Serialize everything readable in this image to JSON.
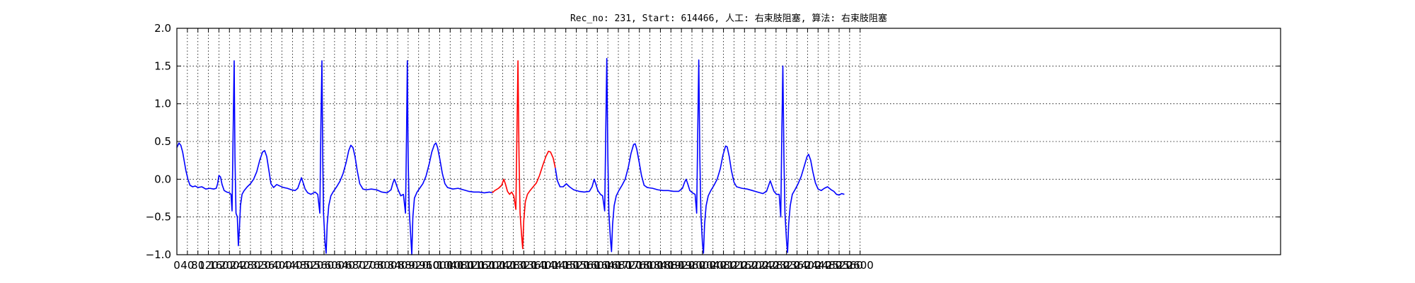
{
  "chart_data": {
    "type": "line",
    "title": "Rec_no: 231, Start: 614466, 人工: 右束肢阻塞, 算法: 右束肢阻塞",
    "xlabel": "",
    "ylabel": "",
    "xlim": [
      0,
      4200
    ],
    "ylim": [
      -1.0,
      2.0
    ],
    "y_ticks": [
      -1.0,
      -0.5,
      0.0,
      0.5,
      1.0,
      1.5,
      2.0
    ],
    "y_tick_labels": [
      "−1.0",
      "−0.5",
      "0.0",
      "0.5",
      "1.0",
      "1.5",
      "2.0"
    ],
    "x_ticks": [
      0,
      40,
      80,
      120,
      160,
      200,
      240,
      280,
      320,
      360,
      400,
      440,
      480,
      520,
      560,
      600,
      640,
      680,
      720,
      760,
      800,
      840,
      880,
      920,
      960,
      1000,
      1040,
      1080,
      1120,
      1160,
      1200,
      1240,
      1280,
      1320,
      1360,
      1400,
      1440,
      1480,
      1520,
      1560,
      1600,
      1640,
      1680,
      1720,
      1760,
      1800,
      1840,
      1880,
      1920,
      1960,
      2000,
      2040,
      2080,
      2120,
      2160,
      2200,
      2240,
      2280,
      2320,
      2360,
      2400,
      2440,
      2480,
      2520,
      2560,
      2600
    ],
    "grid": true,
    "grid_style": "dotted",
    "colors": {
      "signal": "#0000ff",
      "highlight": "#ff0000",
      "axes": "#000000",
      "grid": "#000000"
    },
    "x_end": 2600,
    "highlight_range": [
      1200,
      1440
    ],
    "series": [
      {
        "points": [
          [
            0,
            0.42
          ],
          [
            8,
            0.48
          ],
          [
            15,
            0.45
          ],
          [
            22,
            0.36
          ],
          [
            28,
            0.24
          ],
          [
            34,
            0.12
          ],
          [
            42,
            0.0
          ],
          [
            50,
            -0.08
          ],
          [
            60,
            -0.1
          ],
          [
            70,
            -0.09
          ],
          [
            80,
            -0.11
          ],
          [
            95,
            -0.1
          ],
          [
            110,
            -0.13
          ],
          [
            125,
            -0.12
          ],
          [
            140,
            -0.13
          ],
          [
            150,
            -0.12
          ],
          [
            155,
            -0.06
          ],
          [
            160,
            0.05
          ],
          [
            166,
            0.03
          ],
          [
            172,
            -0.07
          ],
          [
            180,
            -0.15
          ],
          [
            190,
            -0.17
          ],
          [
            200,
            -0.18
          ],
          [
            206,
            -0.2
          ],
          [
            210,
            -0.42
          ],
          [
            214,
            0.6
          ],
          [
            218,
            1.57
          ],
          [
            221,
            0.3
          ],
          [
            225,
            -0.45
          ],
          [
            230,
            -0.5
          ],
          [
            234,
            -0.88
          ],
          [
            238,
            -0.65
          ],
          [
            242,
            -0.35
          ],
          [
            248,
            -0.2
          ],
          [
            256,
            -0.15
          ],
          [
            268,
            -0.1
          ],
          [
            280,
            -0.06
          ],
          [
            292,
            0.0
          ],
          [
            304,
            0.1
          ],
          [
            316,
            0.26
          ],
          [
            326,
            0.36
          ],
          [
            334,
            0.38
          ],
          [
            342,
            0.3
          ],
          [
            350,
            0.12
          ],
          [
            358,
            -0.06
          ],
          [
            368,
            -0.11
          ],
          [
            380,
            -0.07
          ],
          [
            392,
            -0.09
          ],
          [
            406,
            -0.11
          ],
          [
            420,
            -0.12
          ],
          [
            436,
            -0.14
          ],
          [
            450,
            -0.15
          ],
          [
            460,
            -0.12
          ],
          [
            468,
            -0.04
          ],
          [
            474,
            0.02
          ],
          [
            480,
            -0.04
          ],
          [
            488,
            -0.13
          ],
          [
            498,
            -0.18
          ],
          [
            510,
            -0.2
          ],
          [
            526,
            -0.17
          ],
          [
            536,
            -0.2
          ],
          [
            544,
            -0.45
          ],
          [
            548,
            0.7
          ],
          [
            552,
            1.57
          ],
          [
            555,
            0.3
          ],
          [
            558,
            -0.45
          ],
          [
            564,
            -0.85
          ],
          [
            568,
            -0.98
          ],
          [
            572,
            -0.6
          ],
          [
            578,
            -0.35
          ],
          [
            586,
            -0.22
          ],
          [
            596,
            -0.16
          ],
          [
            608,
            -0.1
          ],
          [
            620,
            -0.03
          ],
          [
            632,
            0.07
          ],
          [
            644,
            0.22
          ],
          [
            654,
            0.38
          ],
          [
            662,
            0.45
          ],
          [
            670,
            0.42
          ],
          [
            678,
            0.3
          ],
          [
            686,
            0.12
          ],
          [
            696,
            -0.06
          ],
          [
            708,
            -0.13
          ],
          [
            720,
            -0.14
          ],
          [
            740,
            -0.13
          ],
          [
            760,
            -0.14
          ],
          [
            780,
            -0.17
          ],
          [
            800,
            -0.18
          ],
          [
            815,
            -0.14
          ],
          [
            822,
            -0.05
          ],
          [
            828,
            0.0
          ],
          [
            834,
            -0.06
          ],
          [
            842,
            -0.14
          ],
          [
            852,
            -0.22
          ],
          [
            862,
            -0.2
          ],
          [
            870,
            -0.45
          ],
          [
            874,
            0.6
          ],
          [
            877,
            1.57
          ],
          [
            880,
            0.3
          ],
          [
            884,
            -0.4
          ],
          [
            889,
            -0.7
          ],
          [
            894,
            -1.0
          ],
          [
            898,
            -0.5
          ],
          [
            904,
            -0.25
          ],
          [
            914,
            -0.17
          ],
          [
            924,
            -0.12
          ],
          [
            936,
            -0.06
          ],
          [
            948,
            0.04
          ],
          [
            960,
            0.2
          ],
          [
            970,
            0.36
          ],
          [
            980,
            0.46
          ],
          [
            986,
            0.48
          ],
          [
            992,
            0.42
          ],
          [
            1000,
            0.28
          ],
          [
            1010,
            0.08
          ],
          [
            1020,
            -0.06
          ],
          [
            1030,
            -0.11
          ],
          [
            1050,
            -0.13
          ],
          [
            1070,
            -0.12
          ],
          [
            1090,
            -0.14
          ],
          [
            1110,
            -0.16
          ],
          [
            1130,
            -0.17
          ],
          [
            1150,
            -0.17
          ],
          [
            1170,
            -0.18
          ],
          [
            1190,
            -0.17
          ],
          [
            1200,
            -0.18
          ],
          [
            1210,
            -0.15
          ],
          [
            1224,
            -0.12
          ],
          [
            1236,
            -0.08
          ],
          [
            1244,
            0.0
          ],
          [
            1250,
            -0.06
          ],
          [
            1258,
            -0.16
          ],
          [
            1266,
            -0.2
          ],
          [
            1274,
            -0.17
          ],
          [
            1282,
            -0.22
          ],
          [
            1290,
            -0.4
          ],
          [
            1294,
            0.6
          ],
          [
            1298,
            1.57
          ],
          [
            1302,
            0.3
          ],
          [
            1306,
            -0.45
          ],
          [
            1312,
            -0.75
          ],
          [
            1316,
            -0.92
          ],
          [
            1320,
            -0.55
          ],
          [
            1326,
            -0.3
          ],
          [
            1334,
            -0.2
          ],
          [
            1344,
            -0.15
          ],
          [
            1356,
            -0.1
          ],
          [
            1368,
            -0.05
          ],
          [
            1380,
            0.05
          ],
          [
            1392,
            0.18
          ],
          [
            1404,
            0.3
          ],
          [
            1414,
            0.37
          ],
          [
            1422,
            0.36
          ],
          [
            1432,
            0.28
          ],
          [
            1440,
            0.15
          ],
          [
            1448,
            -0.02
          ],
          [
            1458,
            -0.1
          ],
          [
            1470,
            -0.1
          ],
          [
            1482,
            -0.06
          ],
          [
            1494,
            -0.1
          ],
          [
            1510,
            -0.14
          ],
          [
            1530,
            -0.16
          ],
          [
            1550,
            -0.17
          ],
          [
            1570,
            -0.16
          ],
          [
            1580,
            -0.1
          ],
          [
            1588,
            0.0
          ],
          [
            1594,
            -0.06
          ],
          [
            1602,
            -0.15
          ],
          [
            1612,
            -0.2
          ],
          [
            1620,
            -0.22
          ],
          [
            1628,
            -0.42
          ],
          [
            1632,
            0.6
          ],
          [
            1636,
            1.6
          ],
          [
            1640,
            0.3
          ],
          [
            1644,
            -0.45
          ],
          [
            1650,
            -0.8
          ],
          [
            1654,
            -0.96
          ],
          [
            1658,
            -0.6
          ],
          [
            1664,
            -0.35
          ],
          [
            1672,
            -0.22
          ],
          [
            1682,
            -0.15
          ],
          [
            1694,
            -0.08
          ],
          [
            1706,
            0.0
          ],
          [
            1718,
            0.16
          ],
          [
            1728,
            0.34
          ],
          [
            1738,
            0.46
          ],
          [
            1744,
            0.47
          ],
          [
            1750,
            0.4
          ],
          [
            1758,
            0.25
          ],
          [
            1768,
            0.05
          ],
          [
            1778,
            -0.08
          ],
          [
            1790,
            -0.11
          ],
          [
            1810,
            -0.12
          ],
          [
            1830,
            -0.14
          ],
          [
            1850,
            -0.15
          ],
          [
            1870,
            -0.15
          ],
          [
            1890,
            -0.16
          ],
          [
            1910,
            -0.16
          ],
          [
            1924,
            -0.12
          ],
          [
            1932,
            -0.04
          ],
          [
            1938,
            0.0
          ],
          [
            1944,
            -0.06
          ],
          [
            1952,
            -0.15
          ],
          [
            1962,
            -0.18
          ],
          [
            1972,
            -0.2
          ],
          [
            1978,
            -0.45
          ],
          [
            1982,
            0.6
          ],
          [
            1986,
            1.58
          ],
          [
            1990,
            0.3
          ],
          [
            1994,
            -0.45
          ],
          [
            2000,
            -0.85
          ],
          [
            2004,
            -0.98
          ],
          [
            2008,
            -0.6
          ],
          [
            2014,
            -0.35
          ],
          [
            2022,
            -0.22
          ],
          [
            2032,
            -0.15
          ],
          [
            2044,
            -0.08
          ],
          [
            2056,
            0.0
          ],
          [
            2068,
            0.14
          ],
          [
            2078,
            0.32
          ],
          [
            2088,
            0.44
          ],
          [
            2094,
            0.43
          ],
          [
            2102,
            0.3
          ],
          [
            2110,
            0.12
          ],
          [
            2120,
            -0.04
          ],
          [
            2130,
            -0.1
          ],
          [
            2150,
            -0.12
          ],
          [
            2170,
            -0.13
          ],
          [
            2190,
            -0.15
          ],
          [
            2210,
            -0.17
          ],
          [
            2230,
            -0.19
          ],
          [
            2244,
            -0.16
          ],
          [
            2252,
            -0.08
          ],
          [
            2258,
            -0.02
          ],
          [
            2264,
            -0.08
          ],
          [
            2272,
            -0.16
          ],
          [
            2282,
            -0.2
          ],
          [
            2292,
            -0.2
          ],
          [
            2298,
            -0.5
          ],
          [
            2302,
            0.6
          ],
          [
            2306,
            1.5
          ],
          [
            2310,
            0.3
          ],
          [
            2314,
            -0.45
          ],
          [
            2320,
            -0.82
          ],
          [
            2324,
            -0.97
          ],
          [
            2328,
            -0.6
          ],
          [
            2334,
            -0.35
          ],
          [
            2342,
            -0.2
          ],
          [
            2352,
            -0.14
          ],
          [
            2364,
            -0.06
          ],
          [
            2376,
            0.04
          ],
          [
            2388,
            0.18
          ],
          [
            2398,
            0.3
          ],
          [
            2404,
            0.33
          ],
          [
            2412,
            0.25
          ],
          [
            2420,
            0.1
          ],
          [
            2430,
            -0.05
          ],
          [
            2440,
            -0.13
          ],
          [
            2452,
            -0.15
          ],
          [
            2464,
            -0.12
          ],
          [
            2476,
            -0.1
          ],
          [
            2490,
            -0.14
          ],
          [
            2500,
            -0.16
          ],
          [
            2510,
            -0.2
          ],
          [
            2520,
            -0.21
          ],
          [
            2530,
            -0.19
          ],
          [
            2540,
            -0.2
          ]
        ]
      }
    ]
  }
}
